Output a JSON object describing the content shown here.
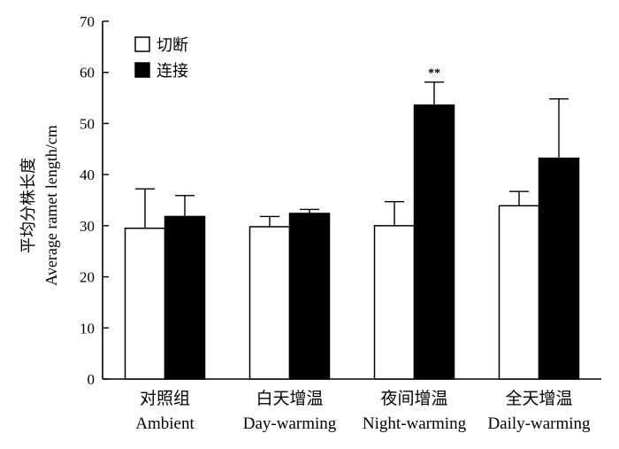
{
  "chart_data": {
    "type": "bar",
    "categories": [
      {
        "cn": "对照组",
        "en": "Ambient"
      },
      {
        "cn": "白天增温",
        "en": "Day-warming"
      },
      {
        "cn": "夜间增温",
        "en": "Night-warming"
      },
      {
        "cn": "全天增温",
        "en": "Daily-warming"
      }
    ],
    "series": [
      {
        "name": "切断",
        "values": [
          29.5,
          29.8,
          30.0,
          33.9
        ],
        "errors": [
          7.7,
          2.0,
          4.7,
          2.8
        ],
        "color": "#ffffff"
      },
      {
        "name": "连接",
        "values": [
          31.8,
          32.4,
          53.6,
          43.2
        ],
        "errors": [
          4.1,
          0.8,
          4.5,
          11.6
        ],
        "color": "#000000"
      }
    ],
    "annotations": [
      {
        "category_index": 2,
        "series_index": 1,
        "text": "**"
      }
    ],
    "ylabel_cn": "平均分株长度",
    "ylabel_en": "Average ramet length/cm",
    "ylim": [
      0,
      70
    ],
    "yticks": [
      0,
      10,
      20,
      30,
      40,
      50,
      60,
      70
    ],
    "legend": "top-left",
    "grid": false
  }
}
